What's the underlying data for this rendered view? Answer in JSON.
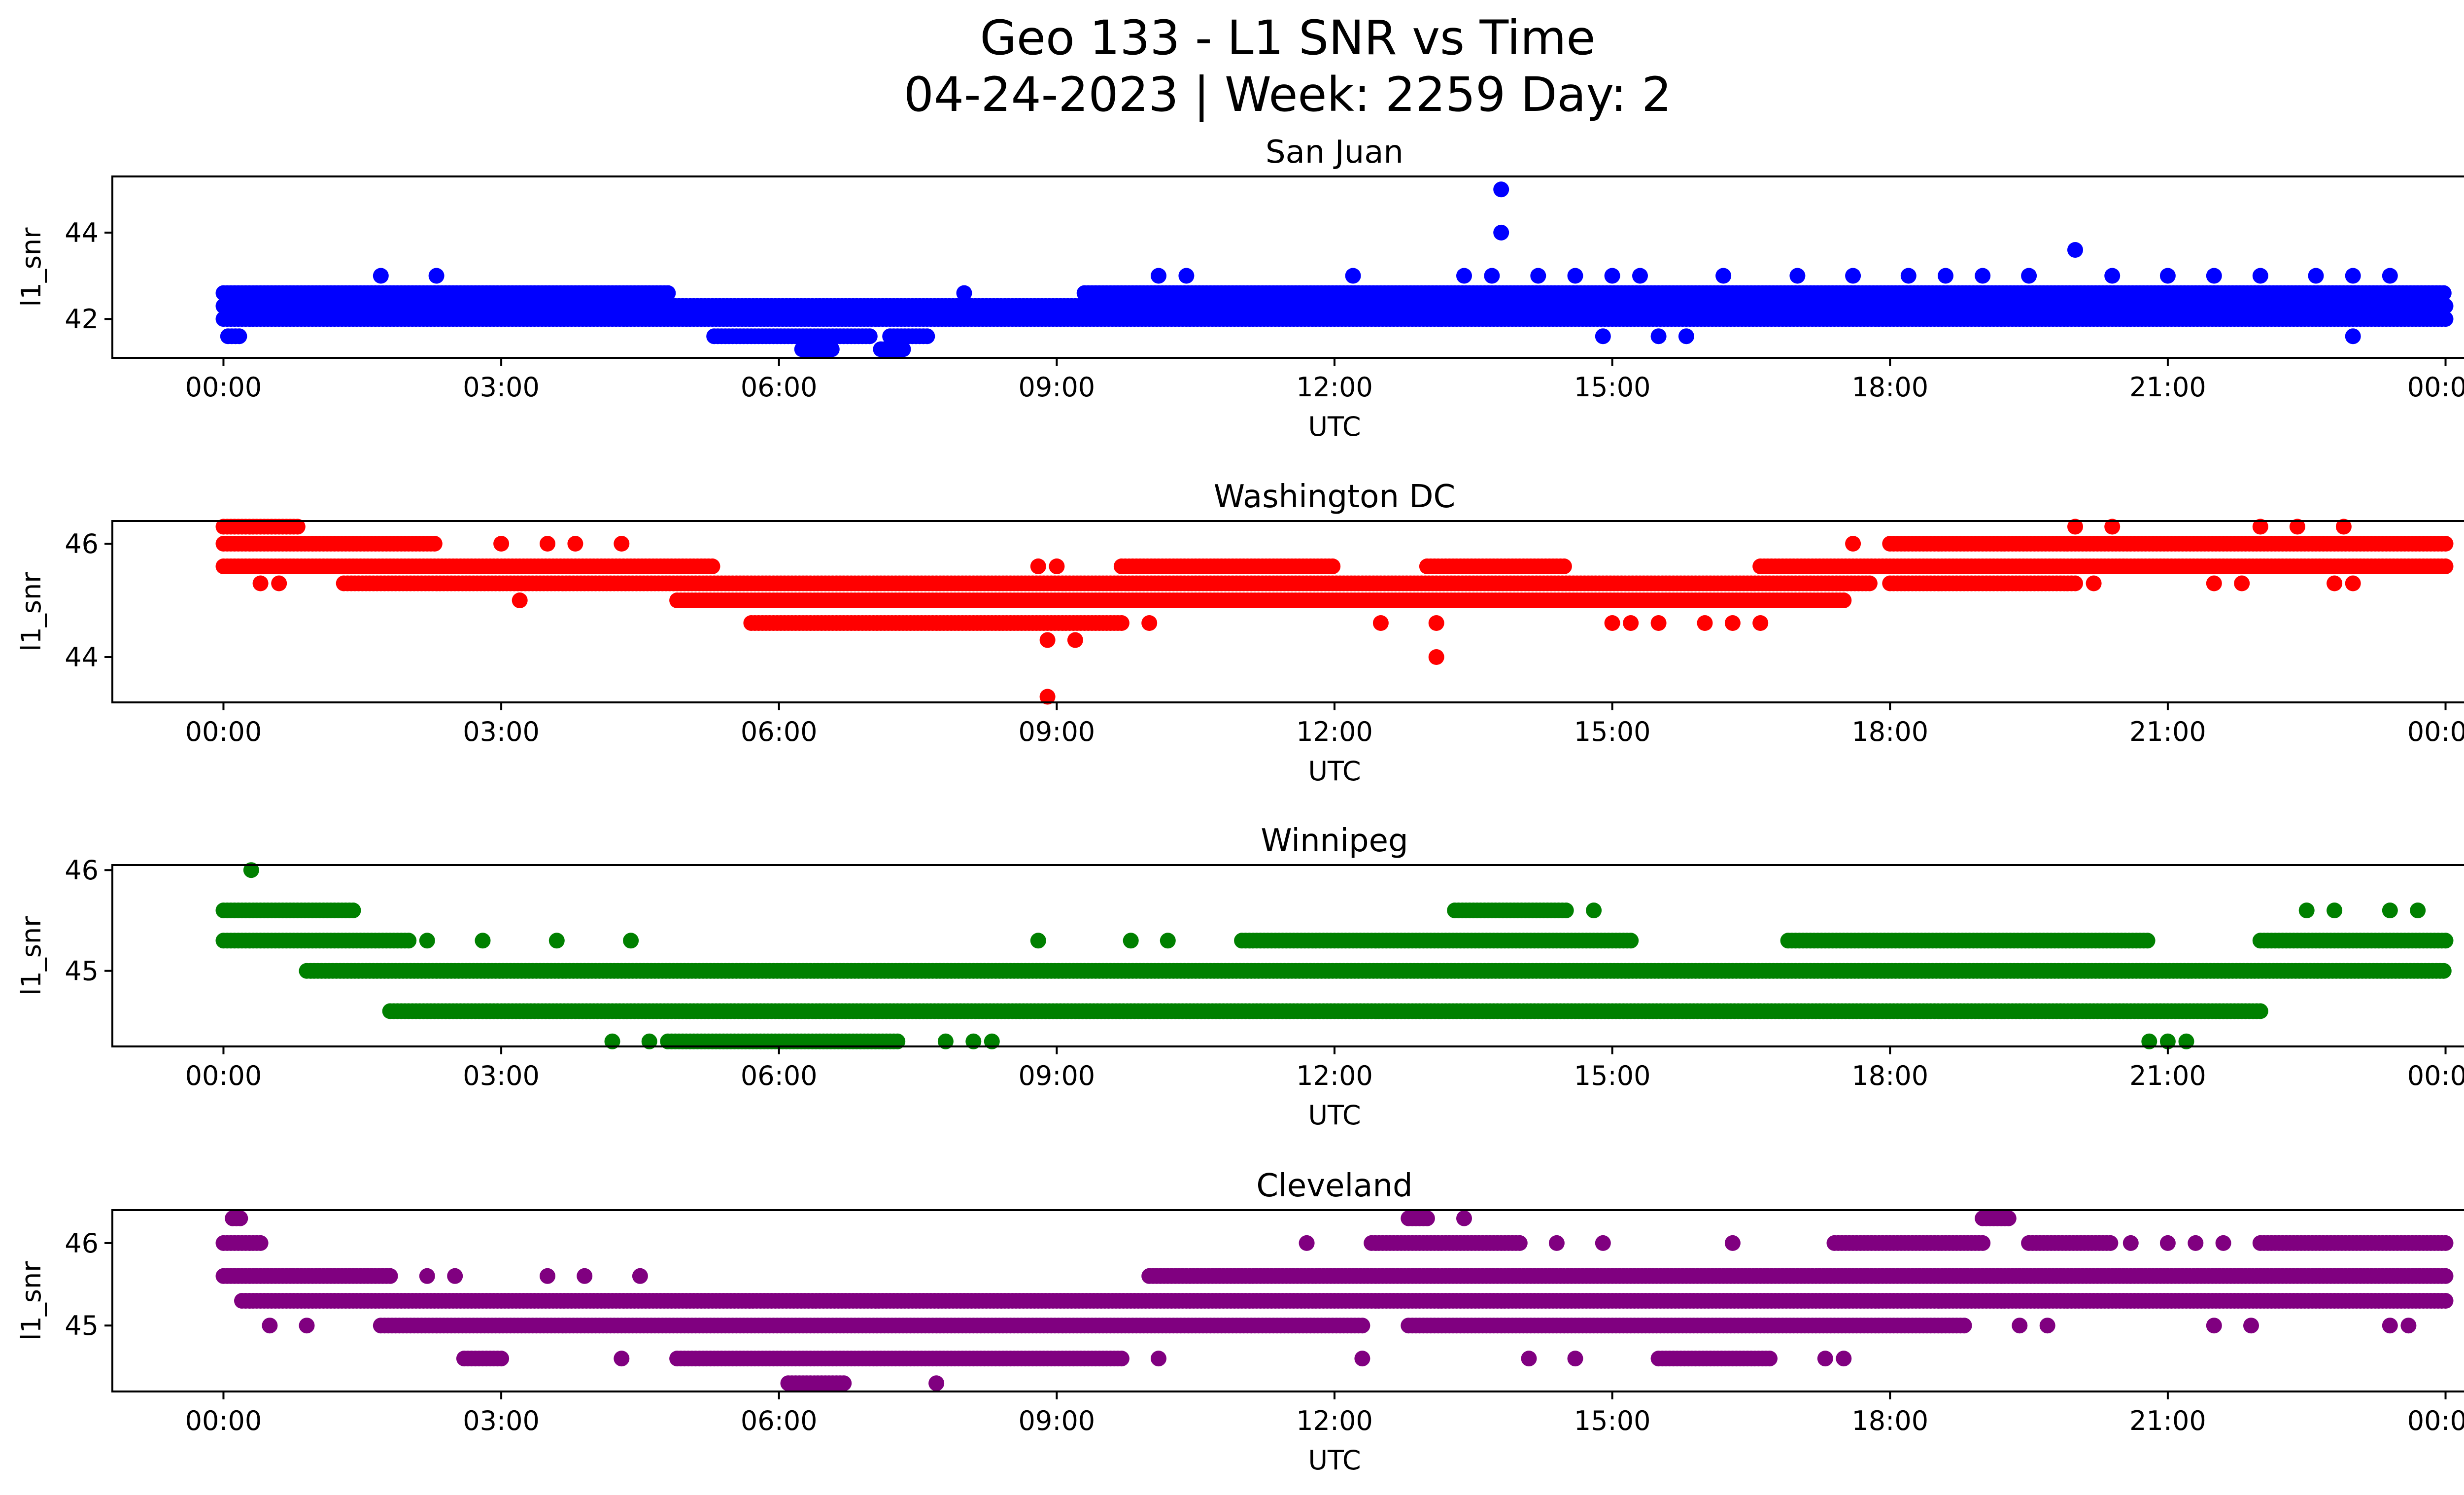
{
  "figure": {
    "title_line1": "Geo 133 - L1 SNR vs Time",
    "title_line2": "04-24-2023 | Week: 2259 Day: 2"
  },
  "chart_data": [
    {
      "type": "scatter",
      "title": "San Juan",
      "xlabel": "UTC",
      "ylabel": "l1_snr",
      "color": "#0000ff",
      "x_ticks": [
        "00:00",
        "03:00",
        "06:00",
        "09:00",
        "12:00",
        "15:00",
        "18:00",
        "21:00",
        "00:00"
      ],
      "x_range_hours": [
        -1.2,
        25.2
      ],
      "ylim": [
        41.1,
        45.3
      ],
      "y_ticks": [
        42,
        44
      ],
      "y_levels": [
        41.3,
        41.6,
        42.0,
        42.3,
        42.6,
        43.0,
        43.6,
        44.0,
        45.0
      ],
      "bands": [
        {
          "y": 42.0,
          "segments": [
            [
              0.0,
              24.0
            ]
          ]
        },
        {
          "y": 42.3,
          "segments": [
            [
              0.0,
              24.0
            ]
          ]
        },
        {
          "y": 42.6,
          "segments": [
            [
              0.0,
              4.8
            ],
            [
              9.3,
              24.0
            ]
          ]
        },
        {
          "y": 41.6,
          "segments": [
            [
              0.05,
              0.2
            ],
            [
              5.3,
              7.0
            ],
            [
              7.2,
              7.6
            ]
          ]
        },
        {
          "y": 41.3,
          "segments": [
            [
              6.25,
              6.6
            ],
            [
              7.1,
              7.35
            ]
          ]
        }
      ],
      "points": [
        [
          1.7,
          43.0
        ],
        [
          2.3,
          43.0
        ],
        [
          8.0,
          42.6
        ],
        [
          10.1,
          43.0
        ],
        [
          10.4,
          43.0
        ],
        [
          12.2,
          43.0
        ],
        [
          13.4,
          43.0
        ],
        [
          13.7,
          43.0
        ],
        [
          13.8,
          45.0
        ],
        [
          13.8,
          44.0
        ],
        [
          14.2,
          43.0
        ],
        [
          14.6,
          43.0
        ],
        [
          15.0,
          43.0
        ],
        [
          15.3,
          43.0
        ],
        [
          14.9,
          41.6
        ],
        [
          15.5,
          41.6
        ],
        [
          15.8,
          41.6
        ],
        [
          16.2,
          43.0
        ],
        [
          17.0,
          43.0
        ],
        [
          17.6,
          43.0
        ],
        [
          18.2,
          43.0
        ],
        [
          18.6,
          43.0
        ],
        [
          19.0,
          43.0
        ],
        [
          19.5,
          43.0
        ],
        [
          20.0,
          43.6
        ],
        [
          20.4,
          43.0
        ],
        [
          21.0,
          43.0
        ],
        [
          21.5,
          43.0
        ],
        [
          22.0,
          43.0
        ],
        [
          22.6,
          43.0
        ],
        [
          23.0,
          43.0
        ],
        [
          23.4,
          43.0
        ],
        [
          23.0,
          41.6
        ]
      ]
    },
    {
      "type": "scatter",
      "title": "Washington DC",
      "xlabel": "UTC",
      "ylabel": "l1_snr",
      "color": "#ff0000",
      "x_ticks": [
        "00:00",
        "03:00",
        "06:00",
        "09:00",
        "12:00",
        "15:00",
        "18:00",
        "21:00",
        "00:00"
      ],
      "x_range_hours": [
        -1.2,
        25.2
      ],
      "ylim": [
        43.2,
        46.4
      ],
      "y_ticks": [
        44,
        46
      ],
      "y_levels": [
        43.3,
        44.0,
        44.3,
        44.6,
        45.0,
        45.3,
        45.6,
        46.0,
        46.3
      ],
      "bands": [
        {
          "y": 46.3,
          "segments": [
            [
              0.0,
              0.8
            ]
          ]
        },
        {
          "y": 46.0,
          "segments": [
            [
              0.0,
              2.3
            ],
            [
              18.0,
              24.0
            ]
          ]
        },
        {
          "y": 45.6,
          "segments": [
            [
              0.0,
              5.3
            ],
            [
              9.7,
              12.0
            ],
            [
              13.0,
              14.5
            ],
            [
              16.6,
              24.0
            ]
          ]
        },
        {
          "y": 45.3,
          "segments": [
            [
              1.3,
              17.8
            ],
            [
              18.0,
              20.0
            ]
          ]
        },
        {
          "y": 45.0,
          "segments": [
            [
              4.9,
              17.5
            ]
          ]
        },
        {
          "y": 44.6,
          "segments": [
            [
              5.7,
              9.7
            ]
          ]
        }
      ],
      "points": [
        [
          0.4,
          45.3
        ],
        [
          0.6,
          45.3
        ],
        [
          3.0,
          46.0
        ],
        [
          3.2,
          45.0
        ],
        [
          3.5,
          46.0
        ],
        [
          3.8,
          46.0
        ],
        [
          4.3,
          46.0
        ],
        [
          8.8,
          45.6
        ],
        [
          9.0,
          45.6
        ],
        [
          8.9,
          44.3
        ],
        [
          9.2,
          44.3
        ],
        [
          8.9,
          43.3
        ],
        [
          10.0,
          44.6
        ],
        [
          12.5,
          44.6
        ],
        [
          13.1,
          44.6
        ],
        [
          13.1,
          44.0
        ],
        [
          15.0,
          44.6
        ],
        [
          15.2,
          44.6
        ],
        [
          15.5,
          44.6
        ],
        [
          16.0,
          44.6
        ],
        [
          16.3,
          44.6
        ],
        [
          16.6,
          44.6
        ],
        [
          17.6,
          46.0
        ],
        [
          20.0,
          46.3
        ],
        [
          20.4,
          46.3
        ],
        [
          20.2,
          45.3
        ],
        [
          22.0,
          46.3
        ],
        [
          22.4,
          46.3
        ],
        [
          22.9,
          46.3
        ],
        [
          21.5,
          45.3
        ],
        [
          21.8,
          45.3
        ],
        [
          22.8,
          45.3
        ],
        [
          23.0,
          45.3
        ]
      ]
    },
    {
      "type": "scatter",
      "title": "Winnipeg",
      "xlabel": "UTC",
      "ylabel": "l1_snr",
      "color": "#008000",
      "x_ticks": [
        "00:00",
        "03:00",
        "06:00",
        "09:00",
        "12:00",
        "15:00",
        "18:00",
        "21:00",
        "00:00"
      ],
      "x_range_hours": [
        -1.2,
        25.2
      ],
      "ylim": [
        44.25,
        46.05
      ],
      "y_ticks": [
        45,
        46
      ],
      "y_levels": [
        44.3,
        44.6,
        45.0,
        45.3,
        45.6,
        46.0
      ],
      "bands": [
        {
          "y": 45.6,
          "segments": [
            [
              0.0,
              1.4
            ],
            [
              13.3,
              14.5
            ]
          ]
        },
        {
          "y": 45.3,
          "segments": [
            [
              0.0,
              2.0
            ],
            [
              11.0,
              15.2
            ],
            [
              16.9,
              20.8
            ],
            [
              22.0,
              24.0
            ]
          ]
        },
        {
          "y": 45.0,
          "segments": [
            [
              0.9,
              24.0
            ]
          ]
        },
        {
          "y": 44.6,
          "segments": [
            [
              1.8,
              22.0
            ]
          ]
        },
        {
          "y": 44.3,
          "segments": [
            [
              4.8,
              7.3
            ]
          ]
        }
      ],
      "points": [
        [
          0.3,
          46.0
        ],
        [
          2.2,
          45.3
        ],
        [
          2.8,
          45.3
        ],
        [
          3.6,
          45.3
        ],
        [
          4.4,
          45.3
        ],
        [
          8.8,
          45.3
        ],
        [
          9.8,
          45.3
        ],
        [
          10.2,
          45.3
        ],
        [
          14.8,
          45.6
        ],
        [
          22.5,
          45.6
        ],
        [
          22.8,
          45.6
        ],
        [
          23.4,
          45.6
        ],
        [
          23.7,
          45.6
        ],
        [
          4.2,
          44.3
        ],
        [
          4.6,
          44.3
        ],
        [
          7.8,
          44.3
        ],
        [
          8.1,
          44.3
        ],
        [
          8.3,
          44.3
        ],
        [
          20.8,
          44.3
        ],
        [
          21.0,
          44.3
        ],
        [
          21.2,
          44.3
        ]
      ]
    },
    {
      "type": "scatter",
      "title": "Cleveland",
      "xlabel": "UTC",
      "ylabel": "l1_snr",
      "color": "#800080",
      "x_ticks": [
        "00:00",
        "03:00",
        "06:00",
        "09:00",
        "12:00",
        "15:00",
        "18:00",
        "21:00",
        "00:00"
      ],
      "x_range_hours": [
        -1.2,
        25.2
      ],
      "ylim": [
        44.2,
        46.4
      ],
      "y_ticks": [
        45,
        46
      ],
      "y_levels": [
        44.3,
        44.6,
        45.0,
        45.3,
        45.6,
        46.0,
        46.3
      ],
      "bands": [
        {
          "y": 46.3,
          "segments": [
            [
              0.1,
              0.2
            ],
            [
              12.8,
              13.0
            ],
            [
              19.0,
              19.3
            ]
          ]
        },
        {
          "y": 46.0,
          "segments": [
            [
              0.0,
              0.4
            ],
            [
              12.4,
              14.0
            ],
            [
              17.4,
              19.0
            ],
            [
              19.5,
              20.4
            ],
            [
              22.0,
              24.0
            ]
          ]
        },
        {
          "y": 45.6,
          "segments": [
            [
              0.0,
              1.8
            ],
            [
              10.0,
              24.0
            ]
          ]
        },
        {
          "y": 45.3,
          "segments": [
            [
              0.2,
              24.0
            ]
          ]
        },
        {
          "y": 45.0,
          "segments": [
            [
              1.7,
              12.3
            ],
            [
              12.8,
              18.8
            ]
          ]
        },
        {
          "y": 44.6,
          "segments": [
            [
              2.6,
              3.0
            ],
            [
              4.9,
              9.7
            ],
            [
              15.5,
              16.7
            ]
          ]
        },
        {
          "y": 44.3,
          "segments": [
            [
              6.1,
              6.7
            ]
          ]
        }
      ],
      "points": [
        [
          2.2,
          45.6
        ],
        [
          2.5,
          45.6
        ],
        [
          3.5,
          45.6
        ],
        [
          3.9,
          45.6
        ],
        [
          4.5,
          45.6
        ],
        [
          0.5,
          45.0
        ],
        [
          0.9,
          45.0
        ],
        [
          4.3,
          44.6
        ],
        [
          10.1,
          44.6
        ],
        [
          12.3,
          44.6
        ],
        [
          14.1,
          44.6
        ],
        [
          14.6,
          44.6
        ],
        [
          17.3,
          44.6
        ],
        [
          17.5,
          44.6
        ],
        [
          7.7,
          44.3
        ],
        [
          11.7,
          46.0
        ],
        [
          14.4,
          46.0
        ],
        [
          14.9,
          46.0
        ],
        [
          16.3,
          46.0
        ],
        [
          20.6,
          46.0
        ],
        [
          21.0,
          46.0
        ],
        [
          21.3,
          46.0
        ],
        [
          21.6,
          46.0
        ],
        [
          19.4,
          45.0
        ],
        [
          19.7,
          45.0
        ],
        [
          21.5,
          45.0
        ],
        [
          21.9,
          45.0
        ],
        [
          23.4,
          45.0
        ],
        [
          23.6,
          45.0
        ],
        [
          13.4,
          46.3
        ]
      ]
    }
  ]
}
